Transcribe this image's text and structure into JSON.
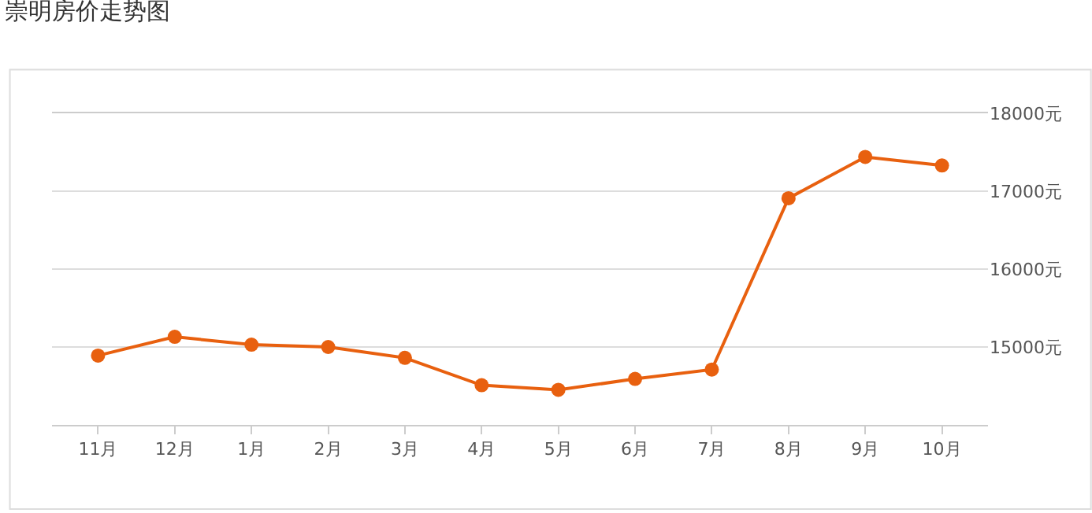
{
  "chart_data": {
    "type": "line",
    "title": "崇明房价走势图",
    "categories": [
      "11月",
      "12月",
      "1月",
      "2月",
      "3月",
      "4月",
      "5月",
      "6月",
      "7月",
      "8月",
      "9月",
      "10月"
    ],
    "series": [
      {
        "color": "#e8600f",
        "values": [
          14890,
          15130,
          15030,
          15000,
          14860,
          14510,
          14450,
          14590,
          14710,
          16910,
          17440,
          17330
        ]
      }
    ],
    "ylim": [
      14000,
      18000
    ],
    "yticks": [
      {
        "value": 15000,
        "label": "15000元"
      },
      {
        "value": 16000,
        "label": "16000元"
      },
      {
        "value": 17000,
        "label": "17000元"
      },
      {
        "value": 18000,
        "label": "18000元"
      }
    ],
    "grid": "y",
    "legend": false,
    "marker": "circle",
    "line_style": "solid"
  }
}
